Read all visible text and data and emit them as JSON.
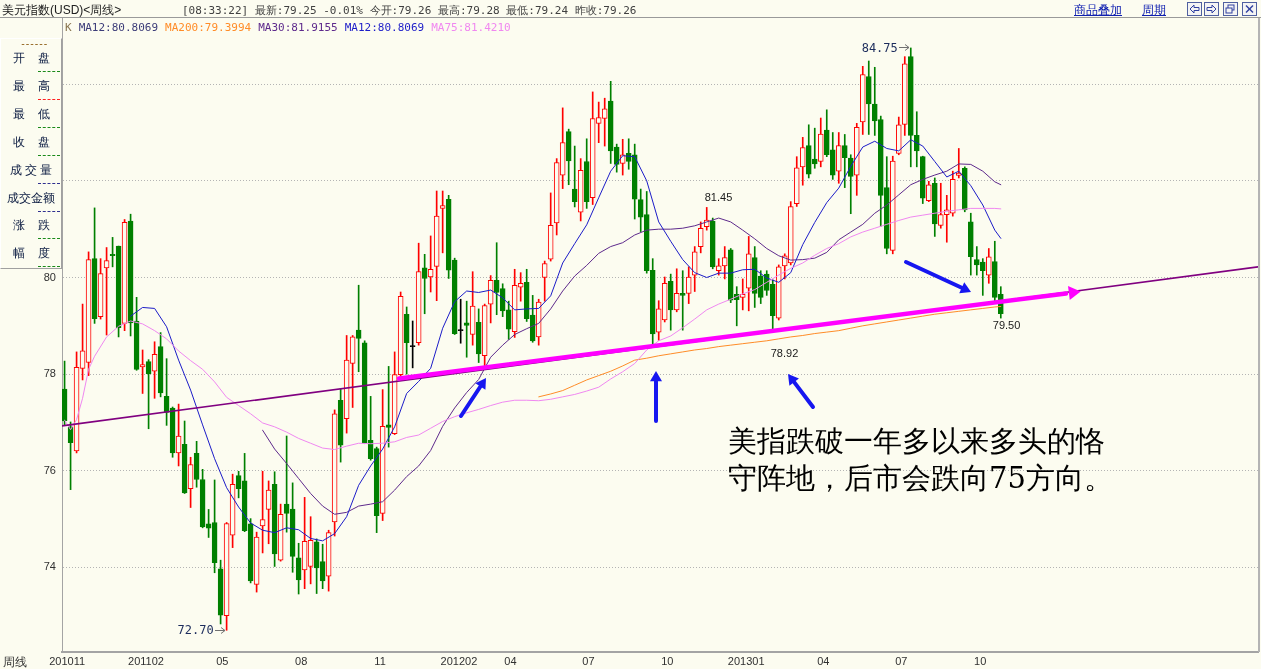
{
  "chart_data": {
    "type": "candlestick",
    "title": "美元指数(USD)<周线>",
    "subtitle": "[08:33:22] 最新:79.25 -0.01% 今开:79.26 最高:79.28 最低:79.24 昨收:79.26",
    "xlabel": "周线",
    "x": [
      "2010-10-29",
      "2010-11-05",
      "2010-11-12",
      "2010-11-19",
      "2010-11-26",
      "2010-12-03",
      "2010-12-10",
      "2010-12-17",
      "2010-12-24",
      "2010-12-31",
      "2011-01-07",
      "2011-01-14",
      "2011-01-21",
      "2011-01-28",
      "2011-02-04",
      "2011-02-11",
      "2011-02-18",
      "2011-02-25",
      "2011-03-04",
      "2011-03-11",
      "2011-03-18",
      "2011-03-25",
      "2011-04-01",
      "2011-04-08",
      "2011-04-15",
      "2011-04-22",
      "2011-04-29",
      "2011-05-06",
      "2011-05-13",
      "2011-05-20",
      "2011-05-27",
      "2011-06-03",
      "2011-06-10",
      "2011-06-17",
      "2011-06-24",
      "2011-07-01",
      "2011-07-08",
      "2011-07-15",
      "2011-07-22",
      "2011-07-29",
      "2011-08-05",
      "2011-08-12",
      "2011-08-19",
      "2011-08-26",
      "2011-09-02",
      "2011-09-09",
      "2011-09-16",
      "2011-09-23",
      "2011-09-30",
      "2011-10-07",
      "2011-10-14",
      "2011-10-21",
      "2011-10-28",
      "2011-11-04",
      "2011-11-11",
      "2011-11-18",
      "2011-11-25",
      "2011-12-02",
      "2011-12-09",
      "2011-12-16",
      "2011-12-23",
      "2011-12-30",
      "2012-01-06",
      "2012-01-13",
      "2012-01-20",
      "2012-01-27",
      "2012-02-03",
      "2012-02-10",
      "2012-02-17",
      "2012-02-24",
      "2012-03-02",
      "2012-03-09",
      "2012-03-16",
      "2012-03-23",
      "2012-03-30",
      "2012-04-06",
      "2012-04-13",
      "2012-04-20",
      "2012-04-27",
      "2012-05-04",
      "2012-05-11",
      "2012-05-18",
      "2012-05-25",
      "2012-06-01",
      "2012-06-08",
      "2012-06-15",
      "2012-06-22",
      "2012-06-29",
      "2012-07-06",
      "2012-07-13",
      "2012-07-20",
      "2012-07-27",
      "2012-08-03",
      "2012-08-10",
      "2012-08-17",
      "2012-08-24",
      "2012-08-31",
      "2012-09-07",
      "2012-09-14",
      "2012-09-21",
      "2012-09-28",
      "2012-10-05",
      "2012-10-12",
      "2012-10-19",
      "2012-10-26",
      "2012-11-02",
      "2012-11-09",
      "2012-11-16",
      "2012-11-23",
      "2012-11-30",
      "2012-12-07",
      "2012-12-14",
      "2012-12-21",
      "2012-12-28",
      "2013-01-04",
      "2013-01-11",
      "2013-01-18",
      "2013-01-25",
      "2013-02-01",
      "2013-02-08",
      "2013-02-15",
      "2013-02-22",
      "2013-03-01",
      "2013-03-08",
      "2013-03-15",
      "2013-03-22",
      "2013-03-29",
      "2013-04-05",
      "2013-04-12",
      "2013-04-19",
      "2013-04-26",
      "2013-05-03",
      "2013-05-10",
      "2013-05-17",
      "2013-05-24",
      "2013-05-31",
      "2013-06-07",
      "2013-06-14",
      "2013-06-21",
      "2013-06-28",
      "2013-07-05",
      "2013-07-12",
      "2013-07-19",
      "2013-07-26",
      "2013-08-02",
      "2013-08-09",
      "2013-08-16",
      "2013-08-23",
      "2013-08-30",
      "2013-09-06",
      "2013-09-13",
      "2013-09-20",
      "2013-09-27",
      "2013-10-04",
      "2013-10-11",
      "2013-10-18",
      "2013-10-25"
    ],
    "series": [
      {
        "ohlc": [
          [
            77.69,
            78.27,
            76.95,
            77.03
          ],
          [
            76.91,
            77.01,
            75.61,
            76.58
          ],
          [
            76.41,
            78.46,
            76.37,
            78.14
          ],
          [
            78.12,
            79.45,
            77.88,
            78.48
          ],
          [
            78.24,
            80.53,
            77.97,
            80.37
          ],
          [
            80.39,
            81.44,
            79.05,
            79.15
          ],
          [
            79.19,
            80.39,
            79.14,
            80.08
          ],
          [
            80.2,
            80.62,
            78.81,
            80.35
          ],
          [
            80.48,
            80.83,
            80.22,
            80.45
          ],
          [
            80.65,
            80.65,
            78.77,
            78.96
          ],
          [
            79.05,
            81.2,
            78.9,
            81.14
          ],
          [
            81.17,
            81.31,
            78.79,
            79.06
          ],
          [
            79.1,
            79.59,
            78.08,
            78.1
          ],
          [
            78.15,
            78.5,
            77.6,
            78.2
          ],
          [
            78.26,
            78.3,
            76.87,
            78.01
          ],
          [
            78.06,
            78.67,
            77.5,
            78.41
          ],
          [
            78.57,
            78.86,
            77.53,
            77.61
          ],
          [
            77.54,
            78.32,
            76.94,
            77.21
          ],
          [
            77.3,
            77.32,
            76.28,
            76.37
          ],
          [
            76.37,
            77.38,
            76.1,
            76.72
          ],
          [
            76.55,
            77.03,
            75.53,
            75.54
          ],
          [
            75.63,
            76.28,
            75.24,
            76.13
          ],
          [
            76.36,
            76.61,
            75.66,
            75.82
          ],
          [
            75.82,
            76.03,
            74.82,
            74.84
          ],
          [
            74.9,
            75.2,
            74.62,
            74.81
          ],
          [
            74.93,
            75.81,
            73.89,
            74.1
          ],
          [
            73.97,
            74.15,
            72.83,
            73.01
          ],
          [
            73.0,
            74.93,
            72.7,
            74.91
          ],
          [
            74.67,
            75.93,
            74.41,
            75.72
          ],
          [
            75.9,
            75.99,
            75.44,
            75.63
          ],
          [
            75.79,
            76.36,
            74.74,
            74.76
          ],
          [
            74.9,
            75.01,
            73.68,
            73.72
          ],
          [
            73.65,
            74.73,
            73.49,
            74.63
          ],
          [
            74.86,
            75.99,
            74.3,
            74.99
          ],
          [
            75.2,
            75.79,
            74.49,
            75.6
          ],
          [
            75.72,
            75.98,
            74.02,
            74.28
          ],
          [
            74.15,
            75.31,
            74.13,
            75.1
          ],
          [
            75.31,
            76.72,
            74.73,
            75.12
          ],
          [
            75.21,
            75.75,
            73.9,
            74.23
          ],
          [
            74.2,
            74.5,
            73.45,
            73.74
          ],
          [
            73.95,
            75.45,
            73.56,
            74.54
          ],
          [
            74.02,
            75.05,
            73.66,
            74.56
          ],
          [
            74.53,
            74.59,
            73.46,
            73.99
          ],
          [
            74.12,
            74.48,
            73.56,
            73.72
          ],
          [
            73.82,
            74.77,
            73.51,
            74.72
          ],
          [
            74.94,
            77.26,
            74.65,
            77.18
          ],
          [
            77.46,
            77.7,
            76.18,
            76.53
          ],
          [
            77.08,
            78.8,
            76.78,
            78.29
          ],
          [
            78.22,
            78.8,
            77.31,
            78.77
          ],
          [
            78.91,
            79.84,
            78.05,
            78.74
          ],
          [
            78.65,
            78.69,
            76.56,
            76.57
          ],
          [
            76.63,
            77.54,
            76.22,
            76.25
          ],
          [
            76.46,
            76.49,
            74.72,
            75.07
          ],
          [
            75.12,
            77.68,
            74.97,
            76.92
          ],
          [
            76.95,
            78.16,
            76.49,
            76.9
          ],
          [
            76.77,
            78.46,
            76.75,
            77.99
          ],
          [
            77.99,
            79.7,
            77.95,
            79.61
          ],
          [
            79.24,
            79.39,
            78.0,
            78.65
          ],
          [
            78.57,
            79.1,
            78.13,
            78.57
          ],
          [
            78.65,
            80.71,
            78.6,
            80.12
          ],
          [
            80.2,
            80.48,
            79.25,
            79.98
          ],
          [
            80.01,
            80.86,
            79.7,
            80.17
          ],
          [
            80.23,
            81.79,
            79.52,
            81.27
          ],
          [
            81.43,
            81.79,
            80.51,
            81.49
          ],
          [
            81.62,
            81.7,
            79.98,
            80.15
          ],
          [
            80.36,
            80.4,
            78.82,
            78.84
          ],
          [
            78.9,
            79.55,
            78.64,
            78.9
          ],
          [
            79.06,
            79.51,
            78.35,
            79.01
          ],
          [
            78.82,
            80.12,
            78.6,
            79.41
          ],
          [
            79.07,
            79.35,
            78.24,
            78.42
          ],
          [
            78.38,
            79.45,
            78.16,
            79.42
          ],
          [
            79.45,
            80.04,
            79.06,
            79.94
          ],
          [
            79.94,
            80.72,
            79.23,
            79.69
          ],
          [
            79.77,
            79.87,
            79.19,
            79.31
          ],
          [
            79.33,
            79.51,
            78.72,
            78.93
          ],
          [
            78.88,
            80.17,
            78.76,
            79.84
          ],
          [
            79.8,
            80.1,
            79.51,
            79.88
          ],
          [
            79.9,
            80.17,
            79.09,
            79.15
          ],
          [
            79.22,
            79.63,
            78.66,
            78.69
          ],
          [
            78.77,
            79.55,
            78.6,
            79.49
          ],
          [
            80.0,
            80.34,
            79.51,
            80.29
          ],
          [
            80.38,
            81.75,
            80.34,
            81.08
          ],
          [
            81.13,
            82.46,
            80.88,
            82.38
          ],
          [
            82.12,
            83.51,
            81.84,
            82.79
          ],
          [
            83.02,
            83.07,
            81.92,
            82.41
          ],
          [
            81.83,
            82.72,
            81.46,
            81.57
          ],
          [
            81.35,
            82.46,
            81.17,
            82.22
          ],
          [
            82.4,
            82.87,
            81.43,
            81.57
          ],
          [
            81.65,
            83.84,
            81.51,
            83.29
          ],
          [
            83.19,
            83.63,
            82.79,
            83.31
          ],
          [
            83.29,
            83.71,
            82.72,
            83.49
          ],
          [
            83.65,
            84.06,
            82.36,
            82.62
          ],
          [
            82.7,
            82.76,
            82.18,
            82.34
          ],
          [
            82.36,
            82.86,
            82.12,
            82.54
          ],
          [
            82.57,
            82.87,
            82.24,
            82.4
          ],
          [
            82.54,
            82.76,
            81.21,
            81.62
          ],
          [
            81.61,
            81.83,
            80.95,
            81.25
          ],
          [
            81.3,
            81.78,
            80.09,
            80.14
          ],
          [
            80.15,
            80.39,
            78.62,
            78.83
          ],
          [
            78.87,
            79.52,
            78.7,
            79.35
          ],
          [
            79.12,
            80.01,
            79.08,
            79.88
          ],
          [
            79.92,
            80.07,
            78.91,
            79.33
          ],
          [
            79.33,
            80.18,
            79.29,
            79.67
          ],
          [
            79.67,
            80.14,
            78.91,
            79.63
          ],
          [
            79.67,
            80.22,
            79.46,
            80.01
          ],
          [
            80.05,
            80.64,
            79.71,
            80.53
          ],
          [
            80.64,
            81.15,
            80.51,
            81.02
          ],
          [
            81.05,
            81.45,
            80.98,
            81.19
          ],
          [
            81.17,
            81.23,
            80.18,
            80.22
          ],
          [
            80.14,
            80.39,
            80.05,
            80.24
          ],
          [
            80.24,
            80.64,
            79.97,
            80.41
          ],
          [
            80.57,
            80.6,
            79.48,
            79.53
          ],
          [
            79.65,
            79.81,
            79.0,
            79.54
          ],
          [
            79.59,
            79.97,
            79.33,
            79.65
          ],
          [
            79.78,
            80.85,
            79.31,
            80.49
          ],
          [
            80.41,
            80.64,
            79.38,
            79.67
          ],
          [
            80.03,
            80.14,
            79.46,
            79.59
          ],
          [
            80.07,
            80.14,
            79.63,
            79.73
          ],
          [
            79.86,
            79.95,
            78.92,
            79.21
          ],
          [
            79.16,
            80.26,
            79.12,
            80.22
          ],
          [
            80.24,
            80.49,
            79.97,
            80.45
          ],
          [
            80.3,
            81.57,
            80.26,
            81.47
          ],
          [
            81.53,
            82.5,
            81.47,
            82.27
          ],
          [
            82.29,
            82.9,
            81.91,
            82.69
          ],
          [
            82.73,
            83.16,
            82.06,
            82.14
          ],
          [
            82.45,
            83.09,
            82.26,
            82.35
          ],
          [
            82.4,
            83.3,
            82.29,
            82.97
          ],
          [
            83.05,
            83.47,
            82.5,
            82.54
          ],
          [
            82.64,
            83.0,
            82.03,
            82.12
          ],
          [
            82.2,
            83.0,
            81.95,
            82.73
          ],
          [
            82.73,
            82.96,
            81.86,
            82.48
          ],
          [
            82.47,
            82.54,
            81.32,
            82.09
          ],
          [
            82.12,
            83.19,
            81.7,
            83.11
          ],
          [
            83.22,
            84.37,
            82.96,
            84.2
          ],
          [
            84.16,
            84.48,
            82.96,
            83.59
          ],
          [
            83.59,
            84.35,
            82.94,
            83.24
          ],
          [
            83.27,
            83.34,
            81.06,
            81.7
          ],
          [
            81.86,
            82.5,
            80.49,
            80.6
          ],
          [
            80.56,
            82.51,
            80.49,
            82.41
          ],
          [
            82.57,
            83.32,
            82.54,
            83.16
          ],
          [
            83.17,
            84.57,
            82.94,
            84.42
          ],
          [
            84.57,
            84.75,
            82.29,
            82.94
          ],
          [
            82.94,
            83.43,
            82.29,
            82.62
          ],
          [
            82.5,
            82.51,
            81.53,
            81.64
          ],
          [
            81.59,
            81.99,
            81.57,
            81.92
          ],
          [
            81.95,
            82.06,
            80.85,
            81.11
          ],
          [
            81.08,
            81.95,
            81.02,
            81.3
          ],
          [
            81.3,
            81.7,
            80.73,
            81.4
          ],
          [
            81.33,
            82.2,
            81.27,
            82.03
          ],
          [
            82.11,
            82.67,
            82.06,
            82.16
          ],
          [
            82.26,
            82.29,
            81.36,
            81.4
          ],
          [
            81.15,
            81.33,
            80.05,
            80.43
          ],
          [
            80.37,
            80.64,
            80.05,
            80.26
          ],
          [
            80.32,
            80.39,
            79.63,
            80.14
          ],
          [
            80.05,
            80.6,
            79.88,
            80.43
          ],
          [
            80.33,
            80.75,
            79.5,
            79.59
          ],
          [
            79.65,
            79.81,
            79.16,
            79.25
          ]
        ],
        "colors": [
          "#008000",
          "#008000",
          "#ff0000",
          "#ff0000",
          "#ff0000",
          "#008000",
          "#ff0000",
          "#ff0000",
          "#008000",
          "#008000",
          "#ff0000",
          "#008000",
          "#008000",
          "#ff0000",
          "#008000",
          "#ff0000",
          "#008000",
          "#008000",
          "#008000",
          "#ff0000",
          "#008000",
          "#ff0000",
          "#008000",
          "#008000",
          "#008000",
          "#008000",
          "#008000",
          "#ff0000",
          "#ff0000",
          "#008000",
          "#008000",
          "#008000",
          "#ff0000",
          "#ff0000",
          "#ff0000",
          "#008000",
          "#ff0000",
          "#008000",
          "#008000",
          "#008000",
          "#ff0000",
          "#ff0000",
          "#008000",
          "#008000",
          "#ff0000",
          "#ff0000",
          "#008000",
          "#ff0000",
          "#ff0000",
          "#008000",
          "#008000",
          "#008000",
          "#008000",
          "#ff0000",
          "#008000",
          "#ff0000",
          "#ff0000",
          "#008000",
          "#000000",
          "#ff0000",
          "#008000",
          "#ff0000",
          "#ff0000",
          "#ff0000",
          "#008000",
          "#008000",
          "#000000",
          "#008000",
          "#ff0000",
          "#008000",
          "#ff0000",
          "#ff0000",
          "#008000",
          "#008000",
          "#008000",
          "#ff0000",
          "#ff0000",
          "#008000",
          "#008000",
          "#ff0000",
          "#ff0000",
          "#ff0000",
          "#ff0000",
          "#ff0000",
          "#008000",
          "#008000",
          "#ff0000",
          "#008000",
          "#ff0000",
          "#ff0000",
          "#ff0000",
          "#008000",
          "#008000",
          "#ff0000",
          "#008000",
          "#008000",
          "#008000",
          "#008000",
          "#008000",
          "#ff0000",
          "#ff0000",
          "#008000",
          "#ff0000",
          "#008000",
          "#ff0000",
          "#ff0000",
          "#ff0000",
          "#ff0000",
          "#008000",
          "#ff0000",
          "#ff0000",
          "#008000",
          "#008000",
          "#ff0000",
          "#ff0000",
          "#008000",
          "#008000",
          "#008000",
          "#008000",
          "#ff0000",
          "#ff0000",
          "#ff0000",
          "#ff0000",
          "#ff0000",
          "#008000",
          "#008000",
          "#ff0000",
          "#008000",
          "#008000",
          "#ff0000",
          "#008000",
          "#008000",
          "#ff0000",
          "#ff0000",
          "#008000",
          "#008000",
          "#008000",
          "#008000",
          "#ff0000",
          "#ff0000",
          "#ff0000",
          "#008000",
          "#008000",
          "#008000",
          "#ff0000",
          "#008000",
          "#ff0000",
          "#ff0000",
          "#ff0000",
          "#ff0000",
          "#008000",
          "#008000",
          "#008000",
          "#008000",
          "#ff0000",
          "#008000",
          "#008000"
        ]
      },
      {
        "name": "MA200:79.3994",
        "type": "line",
        "color": "#ff8c28",
        "x": [
          "2012-05-04",
          "2012-05-18",
          "2012-06-01",
          "2012-06-15",
          "2012-06-29",
          "2012-07-13",
          "2012-07-27",
          "2012-08-10",
          "2012-08-24",
          "2012-09-07",
          "2012-09-21",
          "2012-10-05",
          "2012-10-19",
          "2012-11-02",
          "2012-11-16",
          "2012-11-30",
          "2012-12-14",
          "2012-12-28",
          "2013-01-11",
          "2013-01-25",
          "2013-02-08",
          "2013-02-22",
          "2013-03-08",
          "2013-03-22",
          "2013-04-05",
          "2013-04-19",
          "2013-05-03",
          "2013-05-17",
          "2013-05-31",
          "2013-06-14",
          "2013-06-28",
          "2013-07-12",
          "2013-07-26",
          "2013-08-09",
          "2013-08-23",
          "2013-09-06",
          "2013-09-20",
          "2013-10-04",
          "2013-10-18",
          "2013-10-25"
        ],
        "values": [
          77.53,
          77.59,
          77.66,
          77.77,
          77.88,
          77.97,
          78.06,
          78.17,
          78.29,
          78.33,
          78.38,
          78.42,
          78.46,
          78.5,
          78.53,
          78.57,
          78.6,
          78.63,
          78.66,
          78.69,
          78.73,
          78.77,
          78.8,
          78.84,
          78.87,
          78.9,
          78.95,
          79.0,
          79.04,
          79.08,
          79.12,
          79.16,
          79.2,
          79.24,
          79.27,
          79.3,
          79.33,
          79.36,
          79.39,
          79.4
        ]
      },
      {
        "name": "MA30:81.9155",
        "type": "line",
        "color": "#5e2a8c",
        "x": [
          "2011-06-17",
          "2011-07-01",
          "2011-07-15",
          "2011-07-29",
          "2011-08-12",
          "2011-08-26",
          "2011-09-09",
          "2011-09-23",
          "2011-10-07",
          "2011-10-21",
          "2011-11-04",
          "2011-11-18",
          "2011-12-02",
          "2011-12-16",
          "2011-12-30",
          "2012-01-13",
          "2012-01-27",
          "2012-02-10",
          "2012-02-24",
          "2012-03-09",
          "2012-03-23",
          "2012-04-06",
          "2012-04-20",
          "2012-05-04",
          "2012-05-18",
          "2012-06-01",
          "2012-06-15",
          "2012-06-29",
          "2012-07-13",
          "2012-07-27",
          "2012-08-10",
          "2012-08-24",
          "2012-09-07",
          "2012-09-21",
          "2012-10-05",
          "2012-10-19",
          "2012-11-02",
          "2012-11-16",
          "2012-11-30",
          "2012-12-14",
          "2012-12-28",
          "2013-01-11",
          "2013-01-25",
          "2013-02-08",
          "2013-02-22",
          "2013-03-08",
          "2013-03-22",
          "2013-04-05",
          "2013-04-19",
          "2013-05-03",
          "2013-05-17",
          "2013-05-31",
          "2013-06-14",
          "2013-06-28",
          "2013-07-12",
          "2013-07-26",
          "2013-08-09",
          "2013-08-23",
          "2013-09-06",
          "2013-09-20",
          "2013-10-04",
          "2013-10-18",
          "2013-10-25"
        ],
        "values": [
          76.84,
          76.45,
          76.15,
          75.84,
          75.53,
          75.27,
          75.1,
          75.14,
          75.27,
          75.31,
          75.36,
          75.6,
          75.88,
          76.1,
          76.42,
          76.92,
          77.3,
          77.62,
          77.89,
          78.35,
          78.6,
          78.82,
          78.94,
          79.05,
          79.35,
          79.72,
          80.03,
          80.25,
          80.5,
          80.64,
          80.72,
          80.88,
          80.98,
          81.0,
          81.0,
          81.02,
          81.07,
          81.15,
          81.23,
          81.15,
          80.98,
          80.8,
          80.6,
          80.45,
          80.36,
          80.37,
          80.4,
          80.52,
          80.78,
          80.94,
          81.1,
          81.33,
          81.5,
          81.71,
          81.92,
          82.03,
          82.12,
          82.2,
          82.35,
          82.34,
          82.2,
          81.98,
          81.92
        ]
      },
      {
        "name": "MA12:80.8069",
        "type": "line",
        "color": "#1c1cc8",
        "x": [
          "2011-01-14",
          "2011-01-28",
          "2011-02-11",
          "2011-02-25",
          "2011-03-11",
          "2011-03-25",
          "2011-04-08",
          "2011-04-22",
          "2011-05-06",
          "2011-05-20",
          "2011-06-03",
          "2011-06-17",
          "2011-07-01",
          "2011-07-15",
          "2011-07-29",
          "2011-08-12",
          "2011-08-26",
          "2011-09-09",
          "2011-09-23",
          "2011-10-07",
          "2011-10-21",
          "2011-11-04",
          "2011-11-18",
          "2011-12-02",
          "2011-12-16",
          "2011-12-30",
          "2012-01-13",
          "2012-01-27",
          "2012-02-10",
          "2012-02-24",
          "2012-03-09",
          "2012-03-23",
          "2012-04-06",
          "2012-04-20",
          "2012-05-04",
          "2012-05-18",
          "2012-06-01",
          "2012-06-15",
          "2012-06-29",
          "2012-07-13",
          "2012-07-27",
          "2012-08-10",
          "2012-08-24",
          "2012-09-07",
          "2012-09-21",
          "2012-10-05",
          "2012-10-19",
          "2012-11-02",
          "2012-11-16",
          "2012-11-30",
          "2012-12-14",
          "2012-12-28",
          "2013-01-11",
          "2013-01-25",
          "2013-02-08",
          "2013-02-22",
          "2013-03-08",
          "2013-03-22",
          "2013-04-05",
          "2013-04-19",
          "2013-05-03",
          "2013-05-17",
          "2013-05-31",
          "2013-06-14",
          "2013-06-28",
          "2013-07-12",
          "2013-07-26",
          "2013-08-09",
          "2013-08-23",
          "2013-09-06",
          "2013-09-20",
          "2013-10-04",
          "2013-10-18",
          "2013-10-25"
        ],
        "values": [
          79.2,
          79.38,
          79.36,
          78.98,
          78.29,
          77.67,
          76.95,
          76.25,
          75.65,
          75.25,
          74.92,
          74.77,
          74.72,
          74.82,
          74.78,
          74.6,
          74.55,
          74.7,
          75.05,
          75.7,
          76.1,
          76.45,
          76.91,
          77.6,
          77.85,
          78.12,
          78.95,
          79.5,
          79.72,
          79.69,
          79.74,
          79.58,
          79.33,
          79.35,
          79.36,
          79.62,
          80.3,
          80.7,
          81.09,
          81.65,
          82.2,
          82.52,
          82.5,
          82.0,
          81.15,
          80.75,
          80.37,
          80.1,
          80.0,
          80.09,
          80.09,
          80.16,
          80.17,
          79.99,
          79.9,
          80.1,
          80.68,
          81.14,
          81.55,
          81.85,
          82.3,
          82.7,
          82.82,
          82.67,
          82.62,
          82.85,
          82.72,
          82.4,
          82.08,
          82.2,
          81.9,
          81.5,
          80.98,
          80.81
        ]
      },
      {
        "name": "MA75:81.4210",
        "type": "line",
        "color": "#f088f0",
        "x": [
          "2010-10-29",
          "2010-11-05",
          "2010-11-12",
          "2010-11-19",
          "2010-11-26",
          "2010-12-03",
          "2010-12-17",
          "2010-12-31",
          "2011-01-14",
          "2011-01-28",
          "2011-02-11",
          "2011-02-25",
          "2011-03-11",
          "2011-03-25",
          "2011-04-08",
          "2011-04-22",
          "2011-05-06",
          "2011-05-20",
          "2011-06-03",
          "2011-06-17",
          "2011-07-01",
          "2011-07-15",
          "2011-07-29",
          "2011-08-12",
          "2011-08-26",
          "2011-09-09",
          "2011-09-23",
          "2011-10-07",
          "2011-10-21",
          "2011-11-04",
          "2011-11-18",
          "2011-12-02",
          "2011-12-16",
          "2011-12-30",
          "2012-01-13",
          "2012-01-27",
          "2012-02-10",
          "2012-02-24",
          "2012-03-09",
          "2012-03-23",
          "2012-04-06",
          "2012-04-20",
          "2012-05-04",
          "2012-05-18",
          "2012-06-01",
          "2012-06-15",
          "2012-06-29",
          "2012-07-13",
          "2012-07-27",
          "2012-08-10",
          "2012-08-24",
          "2012-09-07",
          "2012-09-21",
          "2012-10-05",
          "2012-10-19",
          "2012-11-02",
          "2012-11-16",
          "2012-11-30",
          "2012-12-14",
          "2012-12-28",
          "2013-01-11",
          "2013-01-25",
          "2013-02-08",
          "2013-02-22",
          "2013-03-08",
          "2013-03-22",
          "2013-04-05",
          "2013-04-19",
          "2013-05-03",
          "2013-05-17",
          "2013-05-31",
          "2013-06-14",
          "2013-06-28",
          "2013-07-12",
          "2013-07-26",
          "2013-08-09",
          "2013-08-23",
          "2013-09-06",
          "2013-09-20",
          "2013-10-04",
          "2013-10-18",
          "2013-10-25"
        ],
        "values": [
          77.05,
          76.85,
          77.06,
          77.5,
          78.1,
          78.37,
          78.77,
          78.99,
          79.1,
          79.04,
          78.9,
          78.73,
          78.48,
          78.28,
          78.1,
          77.84,
          77.52,
          77.35,
          77.18,
          76.99,
          76.91,
          76.8,
          76.67,
          76.57,
          76.47,
          76.44,
          76.51,
          76.57,
          76.56,
          76.57,
          76.6,
          76.69,
          76.74,
          76.88,
          77.02,
          77.12,
          77.2,
          77.27,
          77.35,
          77.42,
          77.46,
          77.46,
          77.45,
          77.48,
          77.53,
          77.58,
          77.65,
          77.73,
          77.9,
          78.05,
          78.22,
          78.5,
          78.69,
          78.79,
          78.96,
          79.14,
          79.33,
          79.45,
          79.55,
          79.66,
          79.75,
          79.9,
          80.05,
          80.19,
          80.3,
          80.46,
          80.6,
          80.7,
          80.84,
          80.94,
          81.02,
          81.1,
          81.18,
          81.25,
          81.29,
          81.33,
          81.37,
          81.4,
          81.43,
          81.43,
          81.43,
          81.42
        ]
      },
      {
        "type": "line",
        "color": "#800080",
        "x": [
          "2010-10-26",
          "2014-08-21"
        ],
        "values": [
          76.93,
          80.22
        ]
      },
      {
        "type": "line",
        "color": "#ff00ff",
        "x": [
          "2011-11-23",
          "2014-01-09"
        ],
        "values": [
          77.91,
          79.67
        ]
      }
    ],
    "xlim": [
      "2010-10-26",
      "2014-08-21"
    ],
    "xticks": [
      {
        "value": "2010-11",
        "label": "201011"
      },
      {
        "value": "2011-02",
        "label": "201102"
      },
      {
        "value": "2011-05",
        "label": "05"
      },
      {
        "value": "2011-08",
        "label": "08"
      },
      {
        "value": "2011-11",
        "label": "11"
      },
      {
        "value": "2012-02",
        "label": "201202"
      },
      {
        "value": "2012-04",
        "label": "04"
      },
      {
        "value": "2012-07",
        "label": "07"
      },
      {
        "value": "2012-10",
        "label": "10"
      },
      {
        "value": "2013-01",
        "label": "201301"
      },
      {
        "value": "2013-04",
        "label": "04"
      },
      {
        "value": "2013-07",
        "label": "07"
      },
      {
        "value": "2013-10",
        "label": "10"
      }
    ],
    "ylim": [
      72.25,
      85.37
    ],
    "yticks": [
      74,
      76,
      78,
      80,
      {
        "value": 82,
        "label": null
      },
      {
        "value": 84,
        "label": null
      }
    ],
    "grid": "y",
    "legend": "top left",
    "annotations": [
      {
        "text": "84.75",
        "x": "2013-07-12",
        "y": 84.75
      },
      {
        "text": "72.70",
        "x": "2011-05-06",
        "y": 72.7
      },
      {
        "text": "81.45",
        "x": "2012-11-16",
        "y": 81.45
      },
      {
        "text": "78.92",
        "x": "2013-02-01",
        "y": 78.92
      },
      {
        "text": "79.50",
        "x": "2013-10-18",
        "y": 79.5
      },
      "K",
      "MA12:80.8069",
      "美指跌破一年多以来多头的恪守阵地，后市会跌向75方向。",
      "------",
      "开盘",
      "最高",
      "最低",
      "收盘",
      "成交量",
      "成交金额",
      "涨跌",
      "幅度",
      "商品叠加",
      "周期"
    ]
  }
}
